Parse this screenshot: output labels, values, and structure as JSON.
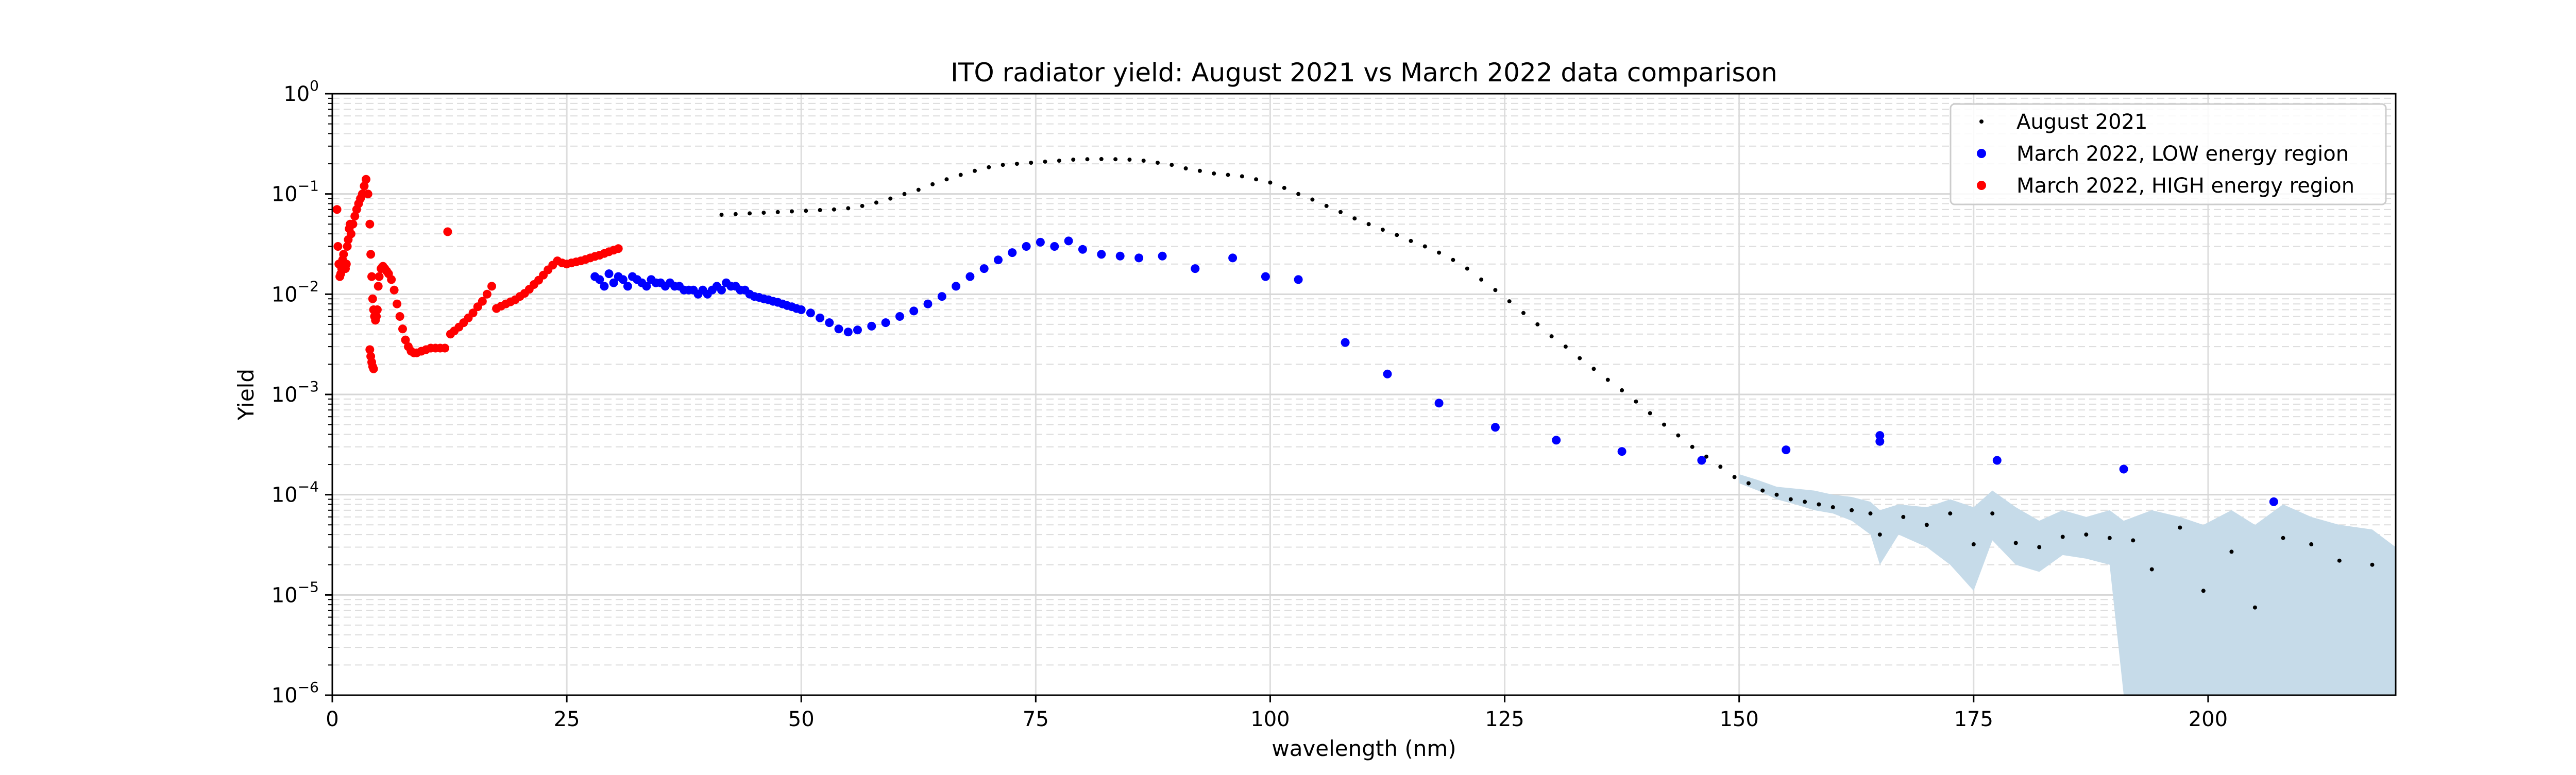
{
  "chart_data": {
    "type": "scatter",
    "title": "ITO radiator yield: August 2021 vs March 2022 data comparison",
    "xlabel": "wavelength (nm)",
    "ylabel": "Yield",
    "xlim": [
      0,
      220
    ],
    "ylim": [
      1e-06,
      1
    ],
    "yscale": "log",
    "grid": true,
    "grid_minor_y": true,
    "legend_position": "top-right",
    "x_ticks": [
      {
        "value": 0,
        "label": "0"
      },
      {
        "value": 25,
        "label": "25"
      },
      {
        "value": 50,
        "label": "50"
      },
      {
        "value": 75,
        "label": "75"
      },
      {
        "value": 100,
        "label": "100"
      },
      {
        "value": 125,
        "label": "125"
      },
      {
        "value": 150,
        "label": "150"
      },
      {
        "value": 175,
        "label": "175"
      },
      {
        "value": 200,
        "label": "200"
      }
    ],
    "y_ticks": [
      {
        "value": 1e-06,
        "base": "10",
        "exp": "−6"
      },
      {
        "value": 1e-05,
        "base": "10",
        "exp": "−5"
      },
      {
        "value": 0.0001,
        "base": "10",
        "exp": "−4"
      },
      {
        "value": 0.001,
        "base": "10",
        "exp": "−3"
      },
      {
        "value": 0.01,
        "base": "10",
        "exp": "−2"
      },
      {
        "value": 0.1,
        "base": "10",
        "exp": "−1"
      },
      {
        "value": 1,
        "base": "10",
        "exp": "0"
      }
    ],
    "series": [
      {
        "name": "August 2021",
        "color": "#000000",
        "marker": "dot-small",
        "x": [
          41.5,
          43,
          44.5,
          46,
          47.5,
          49,
          50.5,
          52,
          53.5,
          55,
          56.5,
          58,
          59.5,
          61,
          62.5,
          64,
          65.5,
          67,
          68.5,
          70,
          71.5,
          73,
          74.5,
          76,
          77.5,
          79,
          80.5,
          82,
          83.5,
          85,
          86.5,
          88,
          89.5,
          91,
          92.5,
          94,
          95.5,
          97,
          98.5,
          100,
          101.5,
          103,
          104.5,
          106,
          107.5,
          109,
          110.5,
          112,
          113.5,
          115,
          116.5,
          118,
          119.5,
          121,
          122.5,
          124,
          125.5,
          127,
          128.5,
          130,
          131.5,
          133,
          134.5,
          136,
          137.5,
          139,
          140.5,
          142,
          143.5,
          145,
          146.5,
          148,
          149.5,
          151,
          152.5,
          154,
          155.5,
          157,
          158.5,
          160,
          162,
          164,
          165,
          167.5,
          170,
          172.5,
          175,
          177,
          179.5,
          182,
          184.5,
          187,
          189.5,
          192,
          194,
          197,
          199.5,
          202.5,
          205,
          208,
          211,
          214,
          217.5
        ],
        "y": [
          0.062,
          0.063,
          0.064,
          0.065,
          0.066,
          0.067,
          0.068,
          0.069,
          0.07,
          0.072,
          0.076,
          0.082,
          0.09,
          0.1,
          0.11,
          0.125,
          0.14,
          0.155,
          0.17,
          0.185,
          0.195,
          0.2,
          0.205,
          0.21,
          0.215,
          0.22,
          0.222,
          0.223,
          0.222,
          0.22,
          0.215,
          0.205,
          0.195,
          0.18,
          0.17,
          0.16,
          0.155,
          0.15,
          0.14,
          0.13,
          0.115,
          0.1,
          0.088,
          0.076,
          0.066,
          0.057,
          0.05,
          0.044,
          0.039,
          0.034,
          0.03,
          0.026,
          0.022,
          0.018,
          0.014,
          0.011,
          0.0085,
          0.0065,
          0.005,
          0.0038,
          0.003,
          0.0023,
          0.0018,
          0.0014,
          0.0011,
          0.00085,
          0.00065,
          0.0005,
          0.00039,
          0.0003,
          0.00024,
          0.00019,
          0.00015,
          0.00013,
          0.00011,
          0.0001,
          9e-05,
          8.5e-05,
          8e-05,
          7.5e-05,
          7e-05,
          6.5e-05,
          4e-05,
          6e-05,
          5e-05,
          6.5e-05,
          3.2e-05,
          6.5e-05,
          3.3e-05,
          3e-05,
          3.8e-05,
          4e-05,
          3.7e-05,
          3.5e-05,
          1.8e-05,
          4.7e-05,
          1.1e-05,
          2.7e-05,
          7.5e-06,
          3.7e-05,
          3.2e-05,
          2.2e-05,
          2e-05
        ]
      },
      {
        "name": "March 2022, LOW energy region",
        "color": "#0000ff",
        "marker": "dot",
        "x": [
          28,
          28.5,
          29,
          29.5,
          30,
          30.5,
          31,
          31.5,
          32,
          32.5,
          33,
          33.5,
          34,
          34.5,
          35,
          35.5,
          36,
          36.5,
          37,
          37.5,
          38,
          38.5,
          39,
          39.5,
          40,
          40.5,
          41,
          41.5,
          42,
          42.5,
          43,
          43.5,
          44,
          44.5,
          45,
          45.5,
          46,
          46.5,
          47,
          47.5,
          48,
          48.5,
          49,
          49.5,
          50,
          51,
          52,
          53,
          54,
          55,
          56,
          57.5,
          59,
          60.5,
          62,
          63.5,
          65,
          66.5,
          68,
          69.5,
          71,
          72.5,
          74,
          75.5,
          77,
          78.5,
          80,
          82,
          84,
          86,
          88.5,
          92,
          96,
          99.5,
          103,
          108,
          112.5,
          118,
          124,
          130.5,
          137.5,
          146,
          155,
          165,
          165,
          177.5,
          191,
          207
        ],
        "y": [
          0.015,
          0.014,
          0.012,
          0.016,
          0.013,
          0.015,
          0.014,
          0.012,
          0.015,
          0.014,
          0.013,
          0.012,
          0.014,
          0.013,
          0.013,
          0.012,
          0.013,
          0.012,
          0.012,
          0.011,
          0.011,
          0.011,
          0.01,
          0.011,
          0.01,
          0.011,
          0.012,
          0.011,
          0.013,
          0.012,
          0.012,
          0.011,
          0.011,
          0.01,
          0.0095,
          0.0093,
          0.009,
          0.0088,
          0.0085,
          0.0083,
          0.008,
          0.0077,
          0.0075,
          0.0072,
          0.007,
          0.0065,
          0.0058,
          0.0052,
          0.0045,
          0.0042,
          0.0044,
          0.0048,
          0.0052,
          0.006,
          0.0068,
          0.008,
          0.0095,
          0.012,
          0.015,
          0.018,
          0.022,
          0.026,
          0.03,
          0.033,
          0.03,
          0.034,
          0.028,
          0.025,
          0.024,
          0.023,
          0.024,
          0.018,
          0.023,
          0.015,
          0.014,
          0.0033,
          0.0016,
          0.00082,
          0.00047,
          0.00035,
          0.00027,
          0.00022,
          0.00028,
          0.00039,
          0.00034,
          0.00022,
          0.00018,
          8.5e-05
        ]
      },
      {
        "name": "March 2022, HIGH energy region",
        "color": "#ff0000",
        "marker": "dot",
        "x": [
          0.5,
          0.6,
          0.7,
          0.8,
          0.9,
          1,
          1.1,
          1.2,
          1.3,
          1.4,
          1.5,
          1.6,
          1.7,
          1.8,
          1.9,
          2,
          2.2,
          2.4,
          2.6,
          2.8,
          3,
          3.2,
          3.4,
          3.6,
          3.8,
          4,
          4.1,
          4.2,
          4.3,
          4.4,
          4.5,
          4.6,
          4.7,
          4.8,
          4.9,
          5,
          5.2,
          5.4,
          5.6,
          5.8,
          6,
          6.3,
          6.6,
          6.9,
          7.2,
          7.5,
          7.8,
          8.1,
          8.4,
          8.7,
          9,
          9.5,
          10,
          10.5,
          11,
          11.5,
          12,
          12.3,
          12.6,
          13,
          13.5,
          14,
          14.5,
          15,
          15.5,
          16,
          16.5,
          17,
          17.5,
          18,
          18.5,
          19,
          19.5,
          20,
          20.5,
          21,
          21.5,
          22,
          22.5,
          23,
          23.5,
          24,
          24.5,
          25,
          25.5,
          26,
          26.5,
          27,
          27.5,
          28,
          28.5,
          29,
          29.5,
          30,
          30.5,
          4,
          4.1,
          4.2,
          4.3,
          4.4
        ],
        "y": [
          0.07,
          0.03,
          0.02,
          0.015,
          0.016,
          0.018,
          0.022,
          0.025,
          0.02,
          0.018,
          0.02,
          0.03,
          0.035,
          0.045,
          0.05,
          0.04,
          0.05,
          0.06,
          0.07,
          0.08,
          0.09,
          0.1,
          0.12,
          0.14,
          0.1,
          0.05,
          0.025,
          0.015,
          0.009,
          0.007,
          0.006,
          0.0055,
          0.006,
          0.007,
          0.012,
          0.015,
          0.018,
          0.019,
          0.018,
          0.017,
          0.016,
          0.014,
          0.011,
          0.008,
          0.006,
          0.0045,
          0.0035,
          0.003,
          0.0027,
          0.0026,
          0.0026,
          0.0027,
          0.0028,
          0.0029,
          0.0029,
          0.0029,
          0.0029,
          0.042,
          0.004,
          0.0043,
          0.0047,
          0.0052,
          0.0058,
          0.0065,
          0.0075,
          0.0085,
          0.01,
          0.012,
          0.0072,
          0.0076,
          0.008,
          0.0084,
          0.0088,
          0.0095,
          0.0102,
          0.0112,
          0.0125,
          0.0138,
          0.0155,
          0.0175,
          0.0195,
          0.0215,
          0.0205,
          0.02,
          0.0205,
          0.021,
          0.0215,
          0.0222,
          0.023,
          0.0238,
          0.0245,
          0.0255,
          0.0265,
          0.0275,
          0.0285,
          0.0028,
          0.0024,
          0.0021,
          0.0019,
          0.0018
        ]
      }
    ],
    "band": {
      "color": "#c6dbe9",
      "x": [
        150,
        152,
        154,
        156,
        158,
        160,
        162,
        164,
        165,
        167,
        170,
        172.5,
        175,
        177,
        179.5,
        182,
        184.5,
        187,
        189.5,
        191,
        194,
        197,
        199.5,
        202.5,
        205,
        208,
        211,
        214,
        217.5,
        220
      ],
      "upper": [
        0.00016,
        0.00014,
        0.00012,
        0.000115,
        0.00011,
        0.0001,
        9.5e-05,
        8.5e-05,
        7e-05,
        8e-05,
        7.5e-05,
        9e-05,
        7.5e-05,
        0.00011,
        7.5e-05,
        5.5e-05,
        7e-05,
        6e-05,
        7e-05,
        5.5e-05,
        7e-05,
        6e-05,
        5e-05,
        7e-05,
        5e-05,
        8e-05,
        6e-05,
        5e-05,
        4.5e-05,
        3e-05
      ],
      "lower": [
        0.00013,
        0.00011,
        9e-05,
        8e-05,
        7e-05,
        6.5e-05,
        5.5e-05,
        4e-05,
        2e-05,
        4e-05,
        3e-05,
        2e-05,
        1.1e-05,
        3.5e-05,
        2e-05,
        1.7e-05,
        2.5e-05,
        2.3e-05,
        2e-05,
        1e-06,
        1e-06,
        1e-06,
        1e-06,
        1e-06,
        1e-06,
        1e-06,
        1e-06,
        1e-06,
        1e-06,
        1e-06
      ]
    }
  }
}
